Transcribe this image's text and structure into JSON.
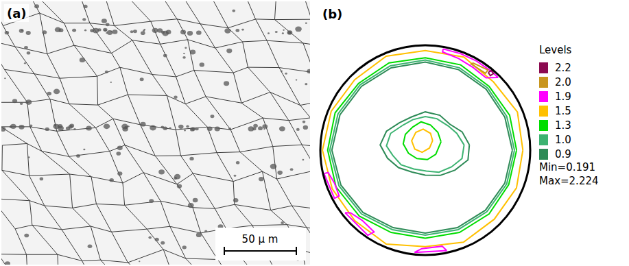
{
  "panel_a": {
    "label": "(a)",
    "scale_bar": "50 μ m"
  },
  "chart_data": {
    "type": "contour_lines",
    "label": "(b)",
    "xlim": [
      -1,
      1
    ],
    "ylim": [
      -1,
      1
    ],
    "tick_labels": false,
    "legend": "right",
    "legend_title": "Levels",
    "levels": [
      {
        "value": 2.2,
        "label": "2.2",
        "color": "#8b0a50"
      },
      {
        "value": 2.0,
        "label": "2.0",
        "color": "#c8961e"
      },
      {
        "value": 1.9,
        "label": "1.9",
        "color": "#ff00ff"
      },
      {
        "value": 1.5,
        "label": "1.5",
        "color": "#ffc000"
      },
      {
        "value": 1.3,
        "label": "1.3",
        "color": "#00dd00"
      },
      {
        "value": 1.0,
        "label": "1.0",
        "color": "#3cb371"
      },
      {
        "value": 0.9,
        "label": "0.9",
        "color": "#2e8b57"
      }
    ],
    "min_label": "Min=0.191",
    "max_label": "Max=2.224",
    "series": [
      {
        "level": 1.5,
        "x": [
          0.93,
          0.878,
          0.65,
          0.368,
          0,
          -0.372,
          -0.672,
          -0.896,
          -0.98,
          -0.887,
          -0.672,
          -0.372,
          0,
          0.364,
          0.658,
          0.869,
          0.93
        ],
        "y": [
          0,
          0.364,
          0.65,
          0.887,
          0.95,
          0.896,
          0.672,
          0.372,
          0,
          -0.368,
          -0.672,
          -0.896,
          -0.92,
          -0.878,
          -0.658,
          -0.36,
          0
        ]
      },
      {
        "level": 1.3,
        "x": [
          0.87,
          0.804,
          0.608,
          0.337,
          0,
          -0.345,
          -0.636,
          -0.859,
          -0.93,
          -0.85,
          -0.629,
          -0.326,
          0,
          0.326,
          0.608,
          0.795,
          0.87
        ],
        "y": [
          0,
          0.333,
          0.608,
          0.813,
          0.88,
          0.832,
          0.636,
          0.356,
          0,
          -0.352,
          -0.629,
          -0.785,
          -0.84,
          -0.785,
          -0.608,
          -0.329,
          0
        ]
      },
      {
        "level": 1.0,
        "x": [
          0.85,
          0.776,
          0.594,
          0.326,
          0,
          -0.333,
          -0.622,
          -0.832,
          -0.91,
          -0.822,
          -0.608,
          -0.314,
          0,
          0.314,
          0.587,
          0.776,
          0.85
        ],
        "y": [
          0,
          0.322,
          0.594,
          0.785,
          0.86,
          0.804,
          0.622,
          0.345,
          0,
          -0.341,
          -0.608,
          -0.758,
          -0.81,
          -0.758,
          -0.587,
          -0.322,
          0
        ]
      },
      {
        "level": 0.9,
        "x": [
          0.83,
          0.758,
          0.58,
          0.318,
          0,
          -0.326,
          -0.608,
          -0.813,
          -0.89,
          -0.804,
          -0.594,
          -0.306,
          0,
          0.306,
          0.573,
          0.758,
          0.83
        ],
        "y": [
          0,
          0.314,
          0.58,
          0.767,
          0.84,
          0.785,
          0.608,
          0.337,
          0,
          -0.333,
          -0.594,
          -0.739,
          -0.79,
          -0.739,
          -0.573,
          -0.314,
          0
        ]
      },
      {
        "level": 1.9,
        "x": [
          0.17,
          0.335,
          0.49,
          0.63,
          0.693,
          0.579,
          0.455,
          0.318,
          0.165,
          0.17
        ],
        "y": [
          0.965,
          0.921,
          0.849,
          0.751,
          0.693,
          0.689,
          0.788,
          0.874,
          0.936,
          0.965
        ]
      },
      {
        "level": 2.0,
        "x": [
          0.455,
          0.597,
          0.573,
          0.437,
          0.455
        ],
        "y": [
          0.831,
          0.764,
          0.733,
          0.821,
          0.831
        ]
      },
      {
        "level": 2.2,
        "x": [
          0.6,
          0.63,
          0.65,
          0.62,
          0.6
        ],
        "y": [
          0.74,
          0.76,
          0.73,
          0.71,
          0.74
        ]
      },
      {
        "level": 1.9,
        "x": [
          -0.965,
          -0.865,
          -0.821,
          -0.865,
          -0.925,
          -0.965
        ],
        "y": [
          -0.223,
          -0.46,
          -0.436,
          -0.315,
          -0.214,
          -0.223
        ]
      },
      {
        "level": 1.9,
        "x": [
          -0.764,
          -0.548,
          -0.488,
          -0.602,
          -0.712,
          -0.764
        ],
        "y": [
          -0.597,
          -0.812,
          -0.78,
          -0.669,
          -0.598,
          -0.597
        ]
      },
      {
        "level": 1.9,
        "x": [
          -0.103,
          0.204,
          0.161,
          -0.033,
          -0.103
        ],
        "y": [
          -0.975,
          -0.958,
          -0.916,
          -0.939,
          -0.975
        ]
      },
      {
        "level": 0.9,
        "x": [
          0.42,
          0.351,
          0.233,
          0.138,
          0,
          -0.13,
          -0.247,
          -0.37,
          -0.43,
          -0.36,
          -0.255,
          -0.126,
          0,
          0.142,
          0.283,
          0.407,
          0.42
        ],
        "y": [
          0.05,
          0.174,
          0.248,
          0.333,
          0.365,
          0.317,
          0.26,
          0.18,
          0.05,
          -0.077,
          -0.167,
          -0.209,
          -0.239,
          -0.241,
          -0.19,
          -0.093,
          0.05
        ]
      },
      {
        "level": 1.0,
        "x": [
          0.37,
          0.3,
          0.22,
          0.11,
          0,
          -0.12,
          -0.21,
          -0.33,
          -0.37,
          -0.31,
          -0.23,
          -0.11,
          0.01,
          0.13,
          0.25,
          0.35,
          0.37
        ],
        "y": [
          0.05,
          0.16,
          0.23,
          0.3,
          0.32,
          0.29,
          0.24,
          0.16,
          0.04,
          -0.05,
          -0.14,
          -0.18,
          -0.2,
          -0.21,
          -0.16,
          -0.08,
          0.05
        ]
      },
      {
        "level": 1.3,
        "x": [
          0.15,
          0.12,
          0.05,
          -0.04,
          -0.12,
          -0.19,
          -0.21,
          -0.16,
          -0.08,
          0.02,
          0.1,
          0.15
        ],
        "y": [
          0.08,
          0.17,
          0.24,
          0.27,
          0.22,
          0.15,
          0.06,
          -0.03,
          -0.08,
          -0.09,
          -0.04,
          0.08
        ]
      },
      {
        "level": 1.5,
        "x": [
          0.07,
          0.05,
          -0.02,
          -0.09,
          -0.13,
          -0.1,
          -0.03,
          0.04,
          0.07
        ],
        "y": [
          0.09,
          0.16,
          0.2,
          0.17,
          0.09,
          0.01,
          -0.02,
          0.02,
          0.09
        ]
      }
    ]
  }
}
